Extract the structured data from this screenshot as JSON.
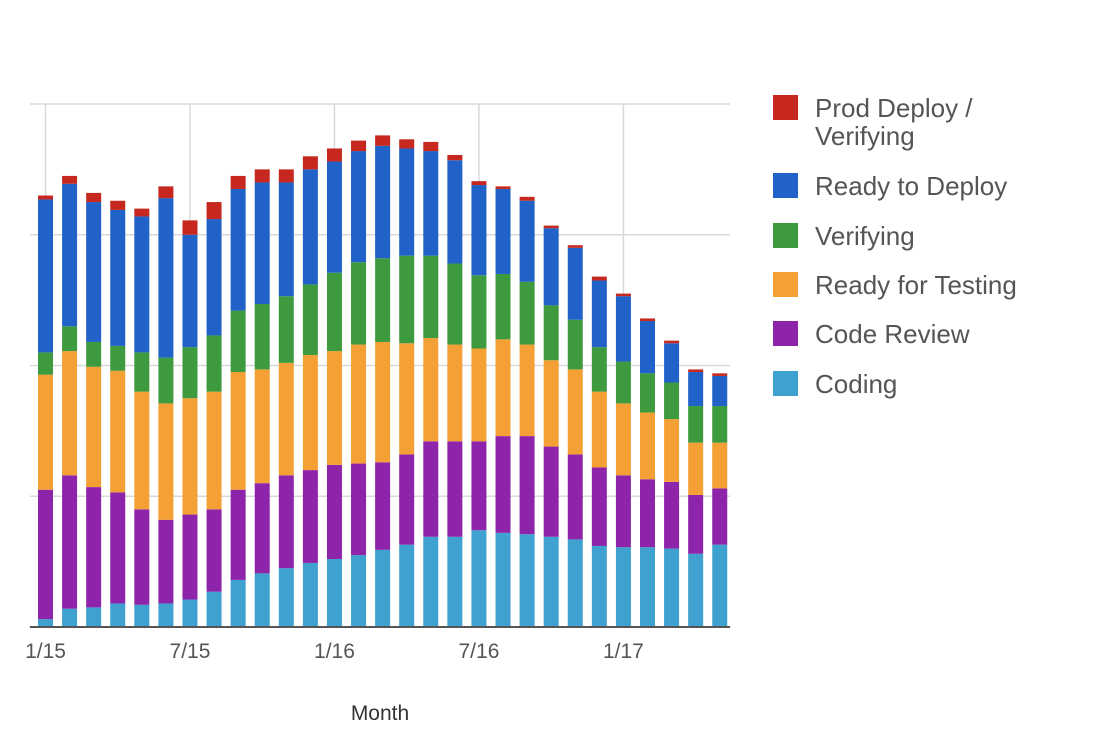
{
  "chart_data": {
    "type": "bar",
    "stacked": true,
    "xlabel": "Month",
    "ylabel": "",
    "ylim": [
      0,
      4
    ],
    "grid": true,
    "legend_position": "right",
    "y_tick_labels_shown": false,
    "x_tick_labels": [
      "1/15",
      "7/15",
      "1/16",
      "7/16",
      "1/17"
    ],
    "x_tick_positions": [
      0,
      6,
      12,
      18,
      24
    ],
    "categories": [
      "1/15",
      "2/15",
      "3/15",
      "4/15",
      "5/15",
      "6/15",
      "7/15",
      "8/15",
      "9/15",
      "10/15",
      "11/15",
      "12/15",
      "1/16",
      "2/16",
      "3/16",
      "4/16",
      "5/16",
      "6/16",
      "7/16",
      "8/16",
      "9/16",
      "10/16",
      "11/16",
      "12/16",
      "1/17",
      "2/17",
      "3/17",
      "4/17",
      "5/17"
    ],
    "series": [
      {
        "name": "Coding",
        "color": "#3ea1cf",
        "values": [
          0.06,
          0.14,
          0.15,
          0.18,
          0.17,
          0.18,
          0.21,
          0.27,
          0.36,
          0.41,
          0.45,
          0.49,
          0.52,
          0.55,
          0.59,
          0.63,
          0.69,
          0.69,
          0.74,
          0.72,
          0.71,
          0.69,
          0.67,
          0.62,
          0.61,
          0.61,
          0.6,
          0.56,
          0.63
        ]
      },
      {
        "name": "Code Review",
        "color": "#8e24aa",
        "values": [
          0.99,
          1.02,
          0.92,
          0.85,
          0.73,
          0.64,
          0.65,
          0.63,
          0.69,
          0.69,
          0.71,
          0.71,
          0.72,
          0.7,
          0.67,
          0.69,
          0.73,
          0.73,
          0.68,
          0.74,
          0.75,
          0.69,
          0.65,
          0.6,
          0.55,
          0.52,
          0.51,
          0.45,
          0.43
        ]
      },
      {
        "name": "Ready for Testing",
        "color": "#f5a034",
        "values": [
          0.88,
          0.95,
          0.92,
          0.93,
          0.9,
          0.89,
          0.89,
          0.9,
          0.9,
          0.87,
          0.86,
          0.88,
          0.87,
          0.91,
          0.92,
          0.85,
          0.79,
          0.74,
          0.71,
          0.74,
          0.7,
          0.66,
          0.65,
          0.58,
          0.55,
          0.51,
          0.48,
          0.4,
          0.35
        ]
      },
      {
        "name": "Verifying",
        "color": "#3e9a3e",
        "values": [
          0.17,
          0.19,
          0.19,
          0.19,
          0.3,
          0.35,
          0.39,
          0.43,
          0.47,
          0.5,
          0.51,
          0.54,
          0.6,
          0.63,
          0.64,
          0.67,
          0.63,
          0.62,
          0.56,
          0.5,
          0.48,
          0.42,
          0.38,
          0.34,
          0.32,
          0.3,
          0.28,
          0.28,
          0.28
        ]
      },
      {
        "name": "Ready to Deploy",
        "color": "#2062c8",
        "values": [
          1.17,
          1.09,
          1.07,
          1.04,
          1.04,
          1.22,
          0.86,
          0.89,
          0.93,
          0.93,
          0.87,
          0.88,
          0.85,
          0.85,
          0.86,
          0.82,
          0.8,
          0.79,
          0.69,
          0.65,
          0.62,
          0.59,
          0.55,
          0.51,
          0.5,
          0.4,
          0.3,
          0.26,
          0.23
        ]
      },
      {
        "name": "Prod Deploy / Verifying",
        "color": "#c62820",
        "values": [
          0.03,
          0.06,
          0.07,
          0.07,
          0.06,
          0.09,
          0.11,
          0.13,
          0.1,
          0.1,
          0.1,
          0.1,
          0.1,
          0.08,
          0.08,
          0.07,
          0.07,
          0.04,
          0.03,
          0.02,
          0.03,
          0.02,
          0.02,
          0.03,
          0.02,
          0.02,
          0.02,
          0.02,
          0.02
        ]
      }
    ],
    "legend": [
      {
        "name": "Prod Deploy / Verifying",
        "lines": [
          "Prod Deploy /",
          "Verifying"
        ],
        "color": "#c62820"
      },
      {
        "name": "Ready to Deploy",
        "lines": [
          "Ready to Deploy"
        ],
        "color": "#2062c8"
      },
      {
        "name": "Verifying",
        "lines": [
          "Verifying"
        ],
        "color": "#3e9a3e"
      },
      {
        "name": "Ready for Testing",
        "lines": [
          "Ready for Testing"
        ],
        "color": "#f5a034"
      },
      {
        "name": "Code Review",
        "lines": [
          "Code Review"
        ],
        "color": "#8e24aa"
      },
      {
        "name": "Coding",
        "lines": [
          "Coding"
        ],
        "color": "#3ea1cf"
      }
    ]
  },
  "colors": {
    "grid": "#d9d9d9",
    "baseline": "#555555",
    "tick_label": "#555555"
  }
}
